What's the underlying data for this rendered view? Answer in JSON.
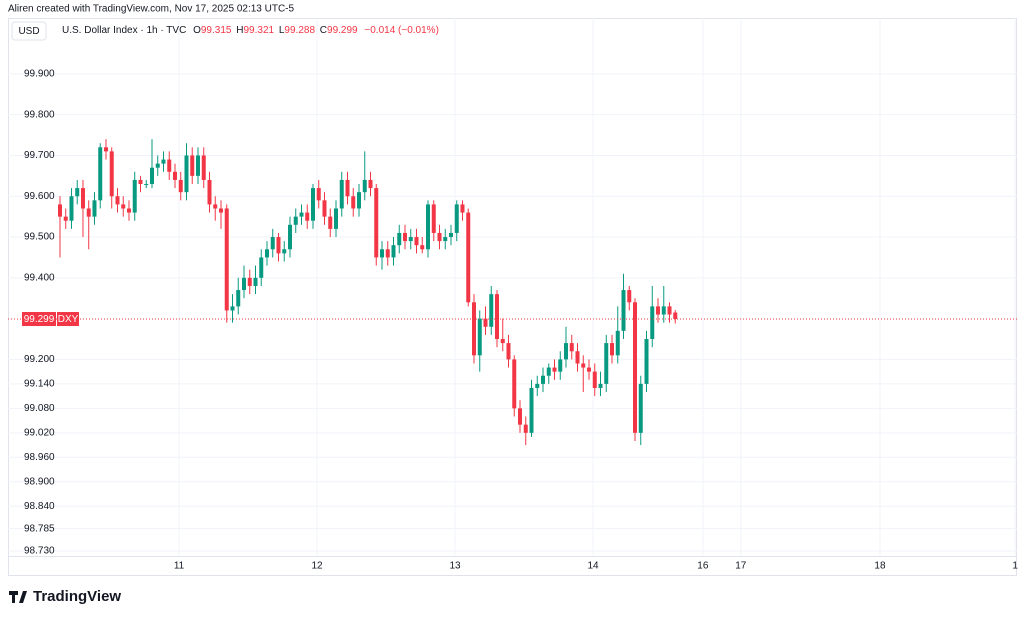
{
  "chart_data": {
    "type": "candlestick",
    "credit": "Aliren created with TradingView.com, Nov 17, 2025 02:13 UTC-5",
    "currency": "USD",
    "title": "U.S. Dollar Index · 1h · TVC",
    "ohlc_labels": {
      "open": "O",
      "high": "H",
      "low": "L",
      "close": "C"
    },
    "change": "−0.014 (−0.01%)",
    "symbol": "DXY",
    "brand": "TradingView",
    "up_color": "#089981",
    "down_color": "#f23645",
    "grid": true,
    "ylim": [
      98.718,
      100.037
    ],
    "yticks": [
      {
        "value": 99.9,
        "label": "99.900"
      },
      {
        "value": 99.8,
        "label": "99.800"
      },
      {
        "value": 99.7,
        "label": "99.700"
      },
      {
        "value": 99.6,
        "label": "99.600"
      },
      {
        "value": 99.5,
        "label": "99.500"
      },
      {
        "value": 99.4,
        "label": "99.400"
      },
      {
        "value": 99.2,
        "label": "99.200"
      },
      {
        "value": 99.14,
        "label": "99.140"
      },
      {
        "value": 99.08,
        "label": "99.080"
      },
      {
        "value": 99.02,
        "label": "99.020"
      },
      {
        "value": 98.96,
        "label": "98.960"
      },
      {
        "value": 98.9,
        "label": "98.900"
      },
      {
        "value": 98.84,
        "label": "98.840"
      },
      {
        "value": 98.785,
        "label": "98.785"
      },
      {
        "value": 98.73,
        "label": "98.730"
      }
    ],
    "xlim": [
      -9.04,
      166.43
    ],
    "xticks": [
      {
        "value": 20.7,
        "label": "11"
      },
      {
        "value": 44.7,
        "label": "12"
      },
      {
        "value": 68.7,
        "label": "13"
      },
      {
        "value": 92.7,
        "label": "14"
      },
      {
        "value": 111.8,
        "label": "16"
      },
      {
        "value": 118.4,
        "label": "17"
      },
      {
        "value": 142.6,
        "label": "18"
      },
      {
        "value": 166.1,
        "label": "1"
      }
    ],
    "open": [
      99.58,
      99.55,
      99.54,
      99.6,
      99.62,
      99.57,
      99.55,
      99.59,
      99.72,
      99.71,
      99.6,
      99.58,
      99.57,
      99.56,
      99.64,
      99.63,
      99.63,
      99.67,
      99.68,
      99.69,
      99.66,
      99.64,
      99.61,
      99.7,
      99.65,
      99.7,
      99.64,
      99.58,
      99.57,
      99.57,
      99.32,
      99.33,
      99.37,
      99.4,
      99.38,
      99.4,
      99.45,
      99.47,
      99.5,
      99.46,
      99.47,
      99.53,
      99.55,
      99.56,
      99.54,
      99.62,
      99.59,
      99.55,
      99.52,
      99.57,
      99.64,
      99.6,
      99.57,
      99.61,
      99.64,
      99.62,
      99.45,
      99.47,
      99.45,
      99.48,
      99.51,
      99.49,
      99.5,
      99.48,
      99.47,
      99.58,
      99.51,
      99.49,
      99.5,
      99.51,
      99.58,
      99.56,
      99.34,
      99.21,
      99.3,
      99.28,
      99.36,
      99.25,
      99.24,
      99.2,
      99.08,
      99.04,
      99.02,
      99.13,
      99.14,
      99.16,
      99.18,
      99.17,
      99.2,
      99.24,
      99.22,
      99.19,
      99.18,
      99.17,
      99.13,
      99.14,
      99.24,
      99.21,
      99.27,
      99.37,
      99.34,
      99.02,
      99.14,
      99.25,
      99.33,
      99.31,
      99.33,
      99.315
    ],
    "high": [
      99.6,
      99.57,
      99.62,
      99.64,
      99.64,
      99.59,
      99.61,
      99.73,
      99.74,
      99.72,
      99.62,
      99.6,
      99.59,
      99.66,
      99.65,
      99.64,
      99.74,
      99.7,
      99.71,
      99.71,
      99.68,
      99.66,
      99.73,
      99.72,
      99.72,
      99.72,
      99.66,
      99.6,
      99.59,
      99.58,
      99.36,
      99.4,
      99.43,
      99.42,
      99.43,
      99.47,
      99.49,
      99.52,
      99.51,
      99.49,
      99.55,
      99.57,
      99.58,
      99.58,
      99.63,
      99.64,
      99.61,
      99.57,
      99.59,
      99.66,
      99.66,
      99.62,
      99.63,
      99.71,
      99.66,
      99.63,
      99.49,
      99.49,
      99.5,
      99.53,
      99.53,
      99.52,
      99.52,
      99.5,
      99.59,
      99.59,
      99.53,
      99.52,
      99.53,
      99.59,
      99.59,
      99.57,
      99.36,
      99.32,
      99.33,
      99.38,
      99.37,
      99.3,
      99.26,
      99.21,
      99.1,
      99.06,
      99.15,
      99.16,
      99.18,
      99.19,
      99.2,
      99.22,
      99.28,
      99.26,
      99.24,
      99.21,
      99.2,
      99.19,
      99.17,
      99.26,
      99.26,
      99.33,
      99.41,
      99.38,
      99.35,
      99.16,
      99.27,
      99.38,
      99.35,
      99.38,
      99.34,
      99.321
    ],
    "low": [
      99.45,
      99.52,
      99.52,
      99.58,
      99.5,
      99.47,
      99.53,
      99.57,
      99.69,
      99.57,
      99.56,
      99.55,
      99.54,
      99.54,
      99.61,
      99.62,
      99.62,
      99.65,
      99.66,
      99.64,
      99.62,
      99.59,
      99.59,
      99.63,
      99.63,
      99.62,
      99.56,
      99.54,
      99.52,
      99.29,
      99.29,
      99.31,
      99.35,
      99.36,
      99.36,
      99.38,
      99.43,
      99.45,
      99.44,
      99.44,
      99.45,
      99.51,
      99.53,
      99.52,
      99.52,
      99.57,
      99.53,
      99.5,
      99.5,
      99.55,
      99.58,
      99.55,
      99.55,
      99.59,
      99.6,
      99.43,
      99.42,
      99.43,
      99.43,
      99.46,
      99.47,
      99.47,
      99.46,
      99.46,
      99.45,
      99.49,
      99.47,
      99.47,
      99.48,
      99.49,
      99.54,
      99.33,
      99.19,
      99.17,
      99.26,
      99.26,
      99.23,
      99.22,
      99.18,
      99.06,
      99.02,
      98.99,
      99.01,
      99.11,
      99.12,
      99.14,
      99.15,
      99.15,
      99.18,
      99.2,
      99.17,
      99.12,
      99.15,
      99.11,
      99.11,
      99.12,
      99.19,
      99.19,
      99.25,
      99.32,
      99.0,
      98.99,
      99.12,
      99.23,
      99.29,
      99.29,
      99.29,
      99.288
    ],
    "close": [
      99.55,
      99.54,
      99.6,
      99.62,
      99.57,
      99.55,
      99.59,
      99.72,
      99.71,
      99.6,
      99.58,
      99.57,
      99.56,
      99.64,
      99.63,
      99.63,
      99.67,
      99.68,
      99.69,
      99.66,
      99.64,
      99.61,
      99.7,
      99.65,
      99.7,
      99.64,
      99.58,
      99.57,
      99.56,
      99.32,
      99.33,
      99.37,
      99.4,
      99.38,
      99.4,
      99.45,
      99.47,
      99.5,
      99.46,
      99.47,
      99.53,
      99.55,
      99.56,
      99.54,
      99.62,
      99.59,
      99.55,
      99.52,
      99.57,
      99.64,
      99.6,
      99.57,
      99.61,
      99.64,
      99.62,
      99.45,
      99.47,
      99.45,
      99.48,
      99.51,
      99.49,
      99.5,
      99.48,
      99.47,
      99.58,
      99.51,
      99.49,
      99.5,
      99.51,
      99.58,
      99.56,
      99.34,
      99.21,
      99.3,
      99.28,
      99.36,
      99.25,
      99.24,
      99.2,
      99.08,
      99.04,
      99.02,
      99.13,
      99.14,
      99.16,
      99.18,
      99.17,
      99.2,
      99.24,
      99.22,
      99.19,
      99.18,
      99.17,
      99.13,
      99.14,
      99.24,
      99.21,
      99.27,
      99.37,
      99.34,
      99.02,
      99.14,
      99.25,
      99.33,
      99.31,
      99.33,
      99.31,
      99.299
    ]
  }
}
